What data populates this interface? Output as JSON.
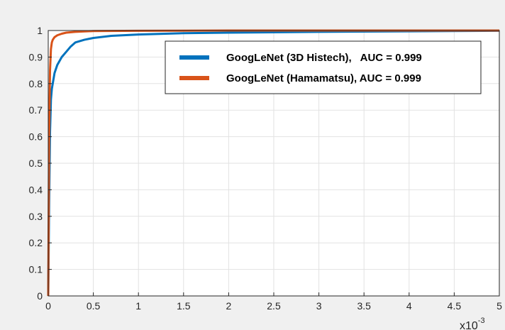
{
  "chart_data": {
    "type": "line",
    "xlim": [
      0,
      0.005
    ],
    "ylim": [
      0,
      1
    ],
    "x_ticks": [
      0,
      0.5,
      1,
      1.5,
      2,
      2.5,
      3,
      3.5,
      4,
      4.5,
      5
    ],
    "x_tick_labels": [
      "0",
      "0.5",
      "1",
      "1.5",
      "2",
      "2.5",
      "3",
      "3.5",
      "4",
      "4.5",
      "5"
    ],
    "x_exponent_label": "x10",
    "x_exponent_power": "-3",
    "y_ticks": [
      0,
      0.1,
      0.2,
      0.3,
      0.4,
      0.5,
      0.6,
      0.7,
      0.8,
      0.9,
      1
    ],
    "y_tick_labels": [
      "0",
      "0.1",
      "0.2",
      "0.3",
      "0.4",
      "0.5",
      "0.6",
      "0.7",
      "0.8",
      "0.9",
      "1"
    ],
    "grid": true,
    "legend_position": "top-right",
    "series": [
      {
        "name": "GoogLeNet (3D Histech),   AUC = 0.999",
        "color": "#0072bd",
        "x": [
          0,
          1e-05,
          2e-05,
          3e-05,
          4e-05,
          5e-05,
          7e-05,
          0.0001,
          0.00015,
          0.0002,
          0.00025,
          0.0003,
          0.0004,
          0.0005,
          0.0007,
          0.001,
          0.0015,
          0.002,
          0.003,
          0.004,
          0.005
        ],
        "y": [
          0,
          0.35,
          0.62,
          0.74,
          0.78,
          0.8,
          0.84,
          0.87,
          0.9,
          0.92,
          0.94,
          0.955,
          0.965,
          0.972,
          0.98,
          0.985,
          0.99,
          0.992,
          0.995,
          0.997,
          0.999
        ]
      },
      {
        "name": "GoogLeNet (Hamamatsu), AUC = 0.999",
        "color": "#d95319",
        "x": [
          0,
          1e-05,
          2e-05,
          3e-05,
          4e-05,
          5e-05,
          7e-05,
          0.0001,
          0.00015,
          0.0002,
          0.0003,
          0.0005,
          0.001,
          0.002,
          0.005
        ],
        "y": [
          0,
          0.6,
          0.85,
          0.93,
          0.955,
          0.965,
          0.975,
          0.982,
          0.988,
          0.992,
          0.995,
          0.998,
          0.999,
          1,
          1
        ]
      }
    ]
  }
}
